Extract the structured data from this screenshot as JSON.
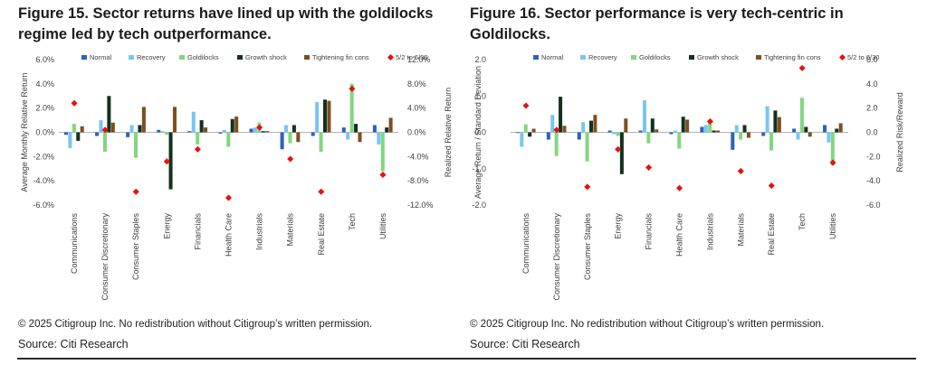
{
  "figure_15": {
    "title": "Figure 15. Sector returns have lined up with the goldilocks regime led by tech outperformance.",
    "copyright": "© 2025 Citigroup Inc. No redistribution without Citigroup’s written permission.",
    "source": "Source: Citi Research"
  },
  "figure_16": {
    "title": "Figure 16. Sector performance is very tech-centric in Goldilocks.",
    "copyright": "© 2025 Citigroup Inc. No redistribution without Citigroup’s written permission.",
    "source": "Source: Citi Research"
  },
  "colors": {
    "Normal": "#2f5fc4",
    "Recovery": "#79c5f2",
    "Goldilocks": "#82d67f",
    "Growth shock": "#12321f",
    "Tightening fin cons": "#7d4f20",
    "5/2 to 6/30": "#e8100e"
  },
  "chart_data": [
    {
      "type": "bar",
      "title": "Figure 15. Sector returns have lined up with the goldilocks regime led by tech outperformance.",
      "ylabel": "Average Monthly Relative Return",
      "y2label": "Realized Relative Return",
      "ylim": [
        -6,
        6
      ],
      "y2lim": [
        -12,
        12
      ],
      "yticks": [
        "6.0%",
        "4.0%",
        "2.0%",
        "0.0%",
        "-2.0%",
        "-4.0%",
        "-6.0%"
      ],
      "y2ticks": [
        "12.0%",
        "8.0%",
        "4.0%",
        "0.0%",
        "-4.0%",
        "-8.0%",
        "-12.0%"
      ],
      "legend_position": "top",
      "categories": [
        "Communications",
        "Consumer Discretionary",
        "Consumer Staples",
        "Energy",
        "Financials",
        "Health Care",
        "Industrials",
        "Materials",
        "Real Estate",
        "Tech",
        "Utilities"
      ],
      "series": [
        {
          "name": "Normal",
          "axis": "left",
          "values": [
            -0.2,
            -0.3,
            -0.4,
            0.2,
            0.1,
            -0.1,
            0.3,
            -1.4,
            -0.3,
            0.4,
            0.6
          ]
        },
        {
          "name": "Recovery",
          "axis": "left",
          "values": [
            -1.3,
            1.0,
            0.6,
            0.1,
            1.7,
            0.2,
            0.4,
            0.6,
            2.5,
            -0.6,
            -1.0
          ]
        },
        {
          "name": "Goldilocks",
          "axis": "left",
          "values": [
            0.7,
            -1.6,
            -2.1,
            -0.2,
            -1.0,
            -1.2,
            0.8,
            -0.9,
            -1.6,
            4.0,
            -3.2
          ]
        },
        {
          "name": "Growth shock",
          "axis": "left",
          "values": [
            -0.7,
            3.0,
            0.6,
            -4.7,
            1.0,
            1.1,
            0.1,
            0.6,
            2.7,
            0.7,
            0.4
          ]
        },
        {
          "name": "Tightening fin cons",
          "axis": "left",
          "values": [
            0.5,
            0.8,
            2.1,
            2.1,
            0.4,
            1.3,
            0.1,
            -0.8,
            2.6,
            -0.8,
            1.2
          ]
        },
        {
          "name": "5/2 to 6/30",
          "axis": "right",
          "marker": "diamond",
          "values": [
            4.8,
            0.4,
            -9.8,
            -4.8,
            -2.8,
            -10.8,
            0.8,
            -4.4,
            -9.8,
            7.2,
            -7.0
          ]
        }
      ]
    },
    {
      "type": "bar",
      "title": "Figure 16. Sector performance is very tech-centric in Goldilocks.",
      "ylabel": "Average Return / Standard Deviation",
      "y2label": "Realized Risk/Reward",
      "ylim": [
        -2,
        2
      ],
      "y2lim": [
        -6,
        6
      ],
      "yticks": [
        "2.0",
        "1.0",
        "0.0",
        "-1.0",
        "-2.0"
      ],
      "y2ticks": [
        "6.0",
        "4.0",
        "2.0",
        "0.0",
        "-2.0",
        "-4.0",
        "-6.0"
      ],
      "legend_position": "top",
      "categories": [
        "Communications",
        "Consumer Discretionary",
        "Consumer Staples",
        "Energy",
        "Financials",
        "Health Care",
        "Industrials",
        "Materials",
        "Real Estate",
        "Tech",
        "Utilities"
      ],
      "series": [
        {
          "name": "Normal",
          "axis": "left",
          "values": [
            -0.02,
            -0.2,
            -0.2,
            0.05,
            0.05,
            -0.05,
            0.15,
            -0.48,
            -0.1,
            0.1,
            0.2
          ]
        },
        {
          "name": "Recovery",
          "axis": "left",
          "values": [
            -0.4,
            0.48,
            0.28,
            -0.05,
            0.88,
            0.05,
            0.2,
            0.2,
            0.72,
            -0.2,
            -0.28
          ]
        },
        {
          "name": "Goldilocks",
          "axis": "left",
          "values": [
            0.22,
            -0.65,
            -0.8,
            -0.1,
            -0.3,
            -0.45,
            0.28,
            -0.2,
            -0.5,
            0.95,
            -0.9
          ]
        },
        {
          "name": "Growth shock",
          "axis": "left",
          "values": [
            -0.12,
            0.98,
            0.32,
            -1.15,
            0.38,
            0.43,
            0.05,
            0.2,
            0.6,
            0.15,
            0.1
          ]
        },
        {
          "name": "Tightening fin cons",
          "axis": "left",
          "values": [
            0.1,
            0.18,
            0.48,
            0.38,
            0.08,
            0.35,
            0.05,
            -0.15,
            0.42,
            -0.12,
            0.25
          ]
        },
        {
          "name": "5/2 to 6/30",
          "axis": "right",
          "marker": "diamond",
          "values": [
            2.2,
            0.2,
            -4.5,
            -1.4,
            -2.9,
            -4.6,
            0.9,
            -3.2,
            -4.4,
            5.3,
            -2.5
          ]
        }
      ]
    }
  ]
}
